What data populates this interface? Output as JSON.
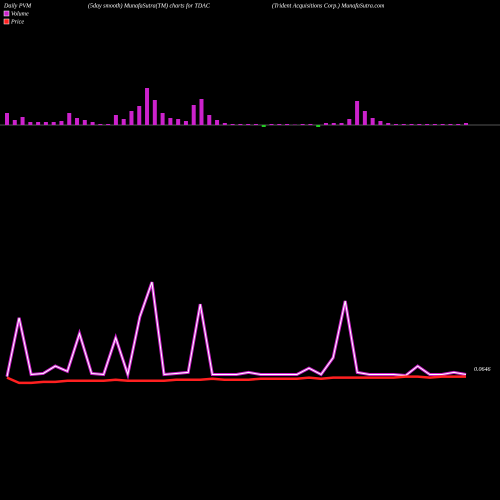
{
  "chart_data": [
    {
      "type": "bar",
      "title": "Daily PVM",
      "subtitle": "(5day smooth) MunafaSutra(TM) charts for TDAC",
      "company": "(Trident Acquisitions Corp.) MunafaSutra.com",
      "values": [
        12,
        5,
        8,
        3,
        3,
        3,
        3,
        4,
        12,
        7,
        5,
        3,
        1,
        1,
        10,
        6,
        14,
        19,
        37,
        25,
        12,
        7,
        6,
        4,
        20,
        26,
        10,
        5,
        2,
        1,
        1,
        1,
        1,
        -2,
        1,
        1,
        1,
        0.5,
        1,
        1,
        -2,
        2,
        2,
        2,
        6,
        24,
        14,
        7,
        4,
        2,
        1,
        1,
        1,
        1,
        1,
        1,
        1,
        1,
        1,
        2
      ],
      "color": "#cc22cc",
      "down_color": "#22cc22",
      "ylim": [
        -10,
        45
      ]
    },
    {
      "type": "line",
      "value_label": "0.0646",
      "series": [
        {
          "name": "Volume",
          "color": "#cc22cc",
          "values": [
            8,
            64,
            10,
            11,
            18,
            13,
            49,
            11,
            10,
            45,
            10,
            65,
            98,
            10,
            11,
            12,
            77,
            10,
            10,
            10,
            12,
            10,
            10,
            10,
            10,
            16,
            10,
            26,
            80,
            12,
            10,
            10,
            10,
            9,
            18,
            10,
            10,
            12,
            10
          ]
        },
        {
          "name": "Price",
          "color": "#ff2020",
          "values": [
            7,
            2,
            2,
            3,
            3,
            4,
            4,
            4,
            4,
            5,
            4,
            4,
            4,
            4,
            5,
            5,
            5,
            6,
            5,
            5,
            5,
            6,
            6,
            6,
            6,
            7,
            6,
            7,
            7,
            7,
            7,
            7,
            7,
            8,
            8,
            7,
            8,
            8,
            8
          ]
        }
      ],
      "ylim": [
        0,
        100
      ]
    }
  ]
}
